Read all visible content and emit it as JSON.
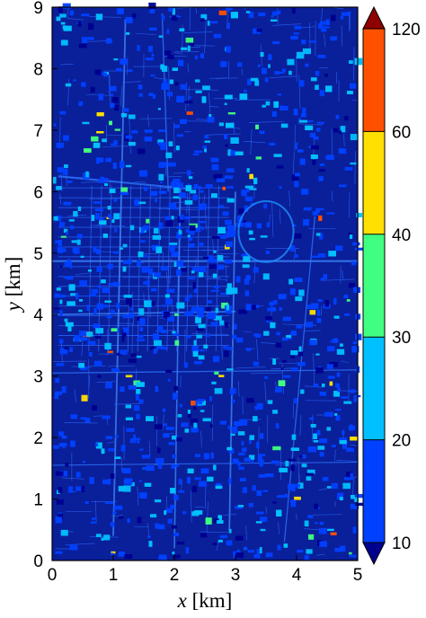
{
  "chart_data": {
    "type": "heatmap",
    "title": "",
    "xlabel": {
      "var": "x",
      "unit": " [km]"
    },
    "ylabel": {
      "var": "y",
      "unit": " [km]"
    },
    "xlim": [
      0,
      5
    ],
    "ylim": [
      0,
      9
    ],
    "xticks": [
      0,
      1,
      2,
      3,
      4,
      5
    ],
    "yticks": [
      0,
      1,
      2,
      3,
      4,
      5,
      6,
      7,
      8,
      9
    ],
    "colorbar": {
      "levels": [
        10,
        20,
        30,
        40,
        60,
        120
      ],
      "colors": [
        "#00008f",
        "#0040ff",
        "#00c0ff",
        "#40ff80",
        "#ffe000",
        "#ff5000",
        "#8f0000"
      ],
      "extend": "both"
    },
    "grid": false,
    "field_description": "dense urban street-block pattern, mostly 10-20 with scattered hotspots up to >60"
  }
}
